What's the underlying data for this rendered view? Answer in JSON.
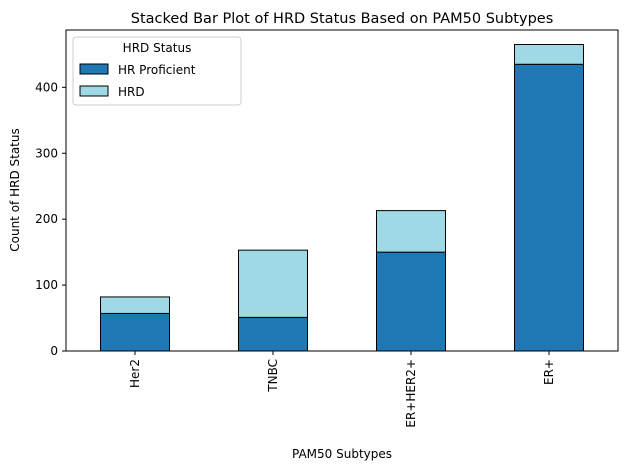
{
  "chart_data": {
    "type": "bar",
    "stacked": true,
    "title": "Stacked Bar Plot of HRD Status Based on PAM50 Subtypes",
    "xlabel": "PAM50 Subtypes",
    "ylabel": "Count of HRD Status",
    "categories": [
      "Her2",
      "TNBC",
      "ER+HER2+",
      "ER+"
    ],
    "series": [
      {
        "name": "HR Proficient",
        "values": [
          57,
          51,
          150,
          435
        ],
        "color": "#1f77b4"
      },
      {
        "name": "HRD",
        "values": [
          25,
          102,
          63,
          30
        ],
        "color": "#9fd9e6"
      }
    ],
    "yticks": [
      0,
      100,
      200,
      300,
      400
    ],
    "ylim": [
      0,
      487
    ],
    "grid": false,
    "legend": {
      "title": "HRD Status",
      "placement": "top-left"
    }
  }
}
